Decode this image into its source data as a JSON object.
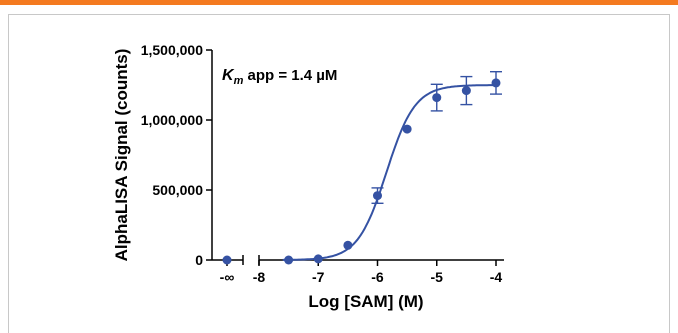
{
  "colors": {
    "accent_bar": "#f47a20",
    "series": "#3552a3",
    "frame": "#c8c8c8"
  },
  "chart_data": {
    "type": "scatter",
    "title": "",
    "xlabel": "Log [SAM] (M)",
    "ylabel": "AlphaLISA Signal (counts)",
    "annotation": {
      "k": "K",
      "sub": "m",
      "rest": " app = 1.4 µM"
    },
    "ylim": [
      0,
      1500000
    ],
    "xlim": [
      -8,
      -4
    ],
    "x_break": true,
    "y_ticks": [
      {
        "value": 0,
        "label": "0"
      },
      {
        "value": 500000,
        "label": "500,000"
      },
      {
        "value": 1000000,
        "label": "1,000,000"
      },
      {
        "value": 1500000,
        "label": "1,500,000"
      }
    ],
    "x_ticks": [
      {
        "value": "-inf",
        "label": "-∞"
      },
      {
        "value": -8,
        "label": "-8"
      },
      {
        "value": -7,
        "label": "-7"
      },
      {
        "value": -6,
        "label": "-6"
      },
      {
        "value": -5,
        "label": "-5"
      },
      {
        "value": -4,
        "label": "-4"
      }
    ],
    "points": [
      {
        "x": "-inf",
        "y": 0,
        "err": 0
      },
      {
        "x": -7.5,
        "y": 0,
        "err": 0
      },
      {
        "x": -7.0,
        "y": 8000,
        "err": 0
      },
      {
        "x": -6.5,
        "y": 105000,
        "err": 0
      },
      {
        "x": -6.0,
        "y": 460000,
        "err": 55000
      },
      {
        "x": -5.5,
        "y": 935000,
        "err": 0
      },
      {
        "x": -5.0,
        "y": 1160000,
        "err": 95000
      },
      {
        "x": -4.5,
        "y": 1210000,
        "err": 100000
      },
      {
        "x": -4.0,
        "y": 1265000,
        "err": 80000
      }
    ],
    "fit": {
      "model": "sigmoidal",
      "bottom": 0,
      "top": 1250000,
      "log_ec50": -5.85,
      "hill": 1.8
    }
  }
}
